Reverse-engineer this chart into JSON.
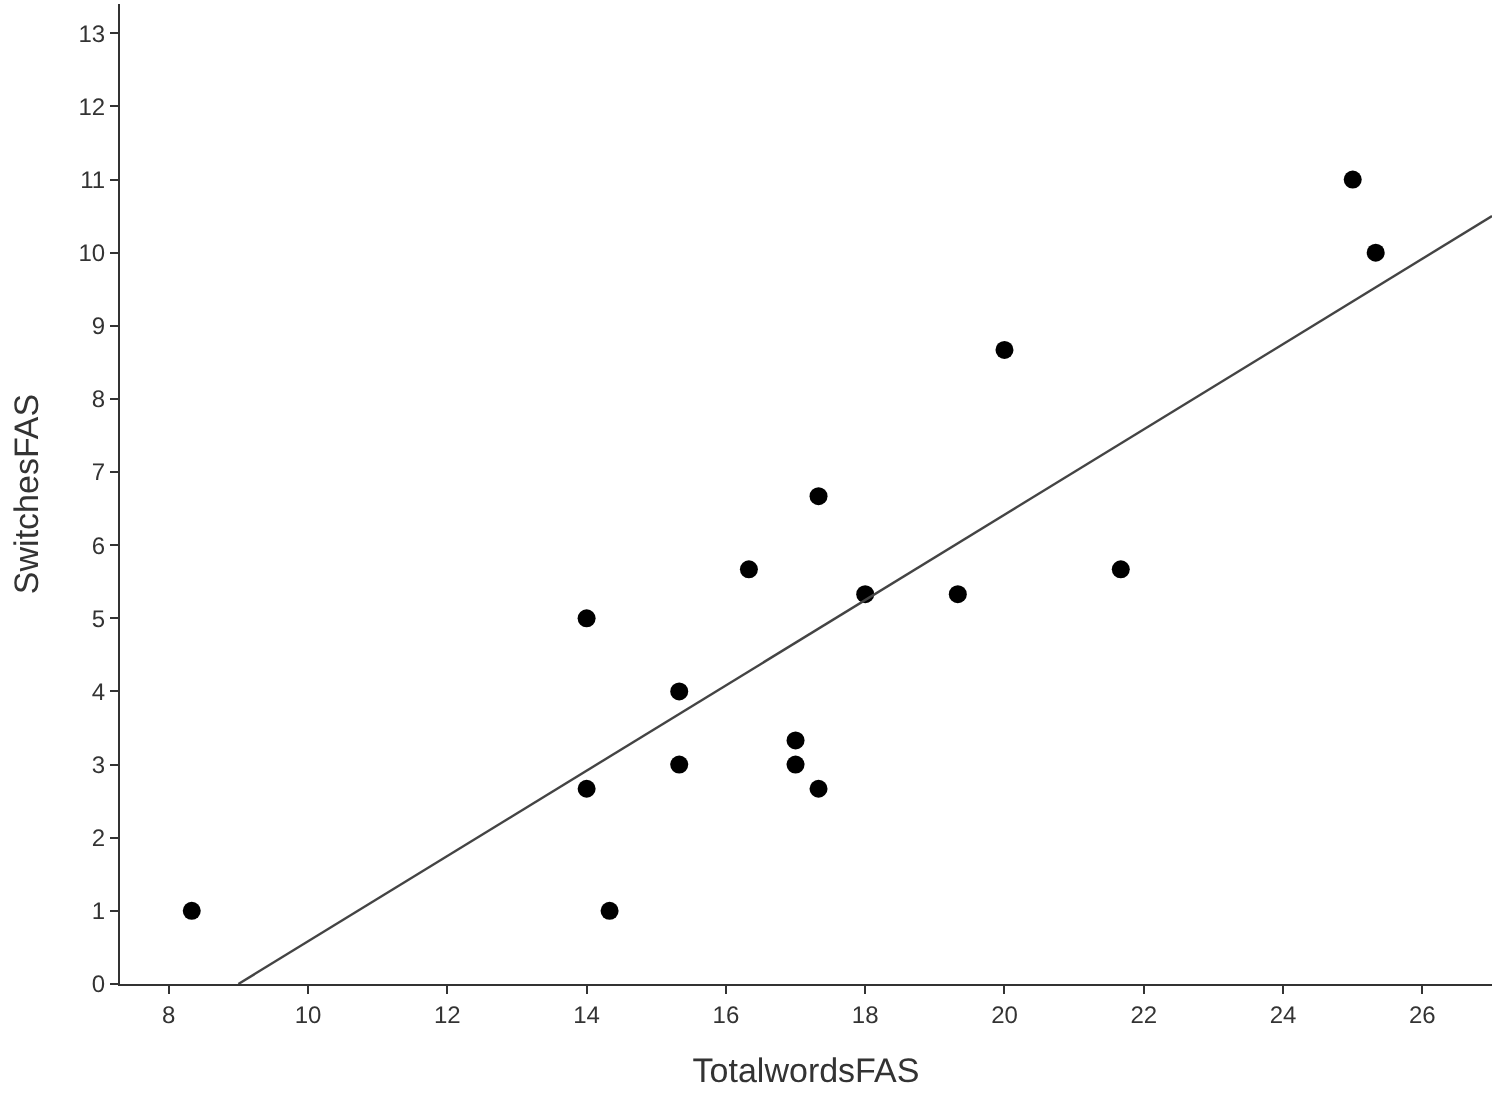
{
  "chart_data": {
    "type": "scatter",
    "xlabel": "TotalwordsFAS",
    "ylabel": "SwitchesFAS",
    "xlim": [
      7.3,
      27
    ],
    "ylim": [
      0,
      13.4
    ],
    "xticks": [
      8,
      10,
      12,
      14,
      16,
      18,
      20,
      22,
      24,
      26
    ],
    "yticks": [
      0,
      1,
      2,
      3,
      4,
      5,
      6,
      7,
      8,
      9,
      10,
      11,
      12,
      13
    ],
    "series": [
      {
        "marker": "circle",
        "color": "#000000",
        "x": [
          8.33,
          14,
          14,
          14.33,
          15.33,
          15.33,
          16.33,
          17,
          17,
          17.33,
          17.33,
          18,
          19.33,
          20,
          21.67,
          25,
          25.33
        ],
        "values": [
          1,
          5,
          2.67,
          1,
          4,
          3,
          5.67,
          3.33,
          3,
          6.67,
          2.67,
          5.33,
          5.33,
          8.67,
          5.67,
          11,
          10
        ]
      },
      {
        "type": "line",
        "marker": "none",
        "color": "#444444",
        "x": [
          9,
          27
        ],
        "values": [
          0,
          10.5
        ]
      }
    ]
  }
}
